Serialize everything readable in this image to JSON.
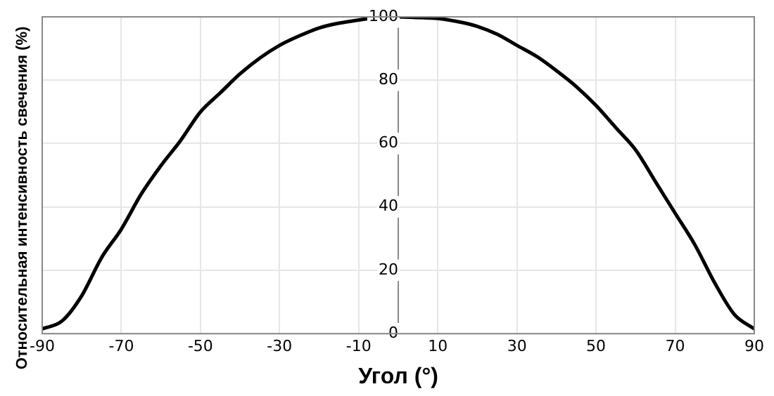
{
  "chart_data": {
    "type": "line",
    "xlabel": "Угол (°)",
    "ylabel": "Относительная интенсивность свечения (%)",
    "x": [
      -90,
      -85,
      -80,
      -75,
      -70,
      -65,
      -60,
      -55,
      -50,
      -45,
      -40,
      -35,
      -30,
      -25,
      -20,
      -15,
      -10,
      -5,
      0,
      5,
      10,
      15,
      20,
      25,
      30,
      35,
      40,
      45,
      50,
      55,
      60,
      65,
      70,
      75,
      80,
      85,
      90
    ],
    "series": [
      {
        "color": "#000000",
        "values": [
          1.5,
          4,
          12,
          24,
          33,
          44,
          53,
          61,
          70,
          76,
          82,
          87,
          91,
          94,
          96.5,
          98,
          99,
          99.8,
          100,
          99.8,
          99.5,
          98.5,
          97,
          94.5,
          91,
          87.5,
          83,
          78,
          72,
          65,
          58,
          48,
          38,
          28,
          16,
          6,
          1.5
        ]
      }
    ],
    "xlim": [
      -90,
      90
    ],
    "xticks": [
      -90,
      -70,
      -50,
      -30,
      -10,
      10,
      30,
      50,
      70,
      90
    ],
    "ylim": [
      0,
      100
    ],
    "yticks": [
      0,
      20,
      40,
      60,
      80,
      100
    ],
    "grid": true,
    "legend": false,
    "marker": "none",
    "line_style": "solid"
  }
}
